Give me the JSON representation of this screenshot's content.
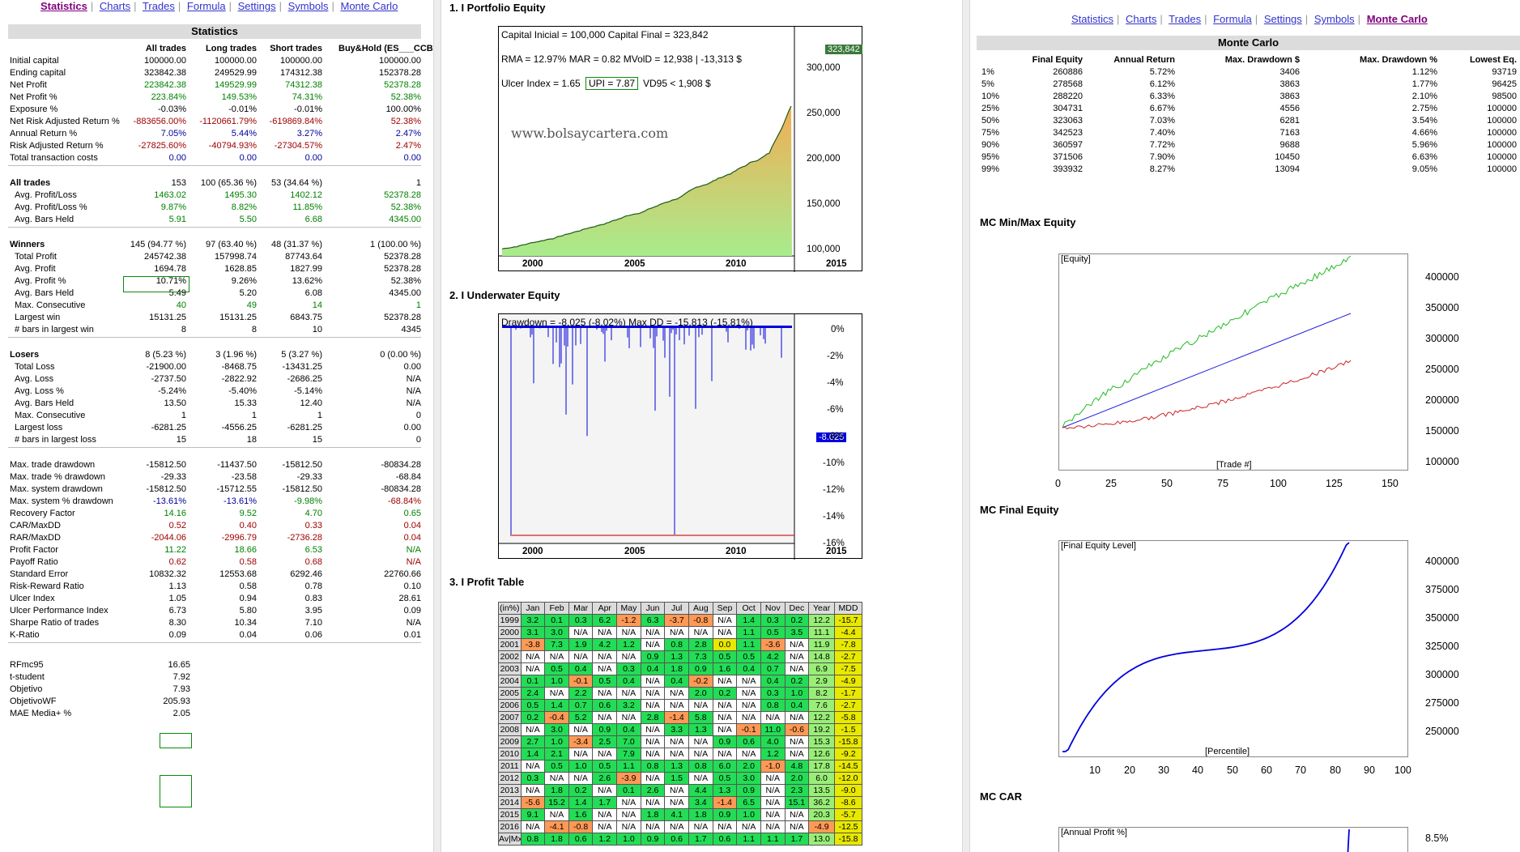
{
  "nav": {
    "items": [
      "Statistics",
      "Charts",
      "Trades",
      "Formula",
      "Settings",
      "Symbols",
      "Monte Carlo"
    ],
    "left_active": "Statistics",
    "right_active": "Monte Carlo"
  },
  "stats": {
    "title": "Statistics",
    "columns": [
      "All trades",
      "Long trades",
      "Short trades",
      "Buy&Hold (ES___CCB)"
    ],
    "groups": [
      [
        [
          "Initial capital",
          "100000.00",
          "100000.00",
          "100000.00",
          "100000.00",
          ""
        ],
        [
          "Ending capital",
          "323842.38",
          "249529.99",
          "174312.38",
          "152378.28",
          ""
        ],
        [
          "Net Profit",
          "223842.38",
          "149529.99",
          "74312.38",
          "52378.28",
          "g"
        ],
        [
          "Net Profit %",
          "223.84%",
          "149.53%",
          "74.31%",
          "52.38%",
          "g"
        ],
        [
          "Exposure %",
          "-0.03%",
          "-0.01%",
          "-0.01%",
          "100.00%",
          ""
        ],
        [
          "Net Risk Adjusted Return %",
          "-883656.00%",
          "-1120661.79%",
          "-619869.84%",
          "52.38%",
          "r"
        ],
        [
          "Annual Return %",
          "7.05%",
          "5.44%",
          "3.27%",
          "2.47%",
          "b"
        ],
        [
          "Risk Adjusted Return %",
          "-27825.60%",
          "-40794.93%",
          "-27304.57%",
          "2.47%",
          "r"
        ],
        [
          "Total transaction costs",
          "0.00",
          "0.00",
          "0.00",
          "0.00",
          "b"
        ]
      ],
      [
        [
          "All trades",
          "153",
          "100 (65.36 %)",
          "53 (34.64 %)",
          "1",
          "B"
        ],
        [
          "  Avg. Profit/Loss",
          "1463.02",
          "1495.30",
          "1402.12",
          "52378.28",
          "g"
        ],
        [
          "  Avg. Profit/Loss %",
          "9.87%",
          "8.82%",
          "11.85%",
          "52.38%",
          "g"
        ],
        [
          "  Avg. Bars Held",
          "5.91",
          "5.50",
          "6.68",
          "4345.00",
          "g"
        ]
      ],
      [
        [
          "Winners",
          "145 (94.77 %)",
          "97 (63.40 %)",
          "48 (31.37 %)",
          "1 (100.00 %)",
          "B"
        ],
        [
          "  Total Profit",
          "245742.38",
          "157998.74",
          "87743.64",
          "52378.28",
          ""
        ],
        [
          "  Avg. Profit",
          "1694.78",
          "1628.85",
          "1827.99",
          "52378.28",
          ""
        ],
        [
          "  Avg. Profit %",
          "10.71%",
          "9.26%",
          "13.62%",
          "52.38%",
          ""
        ],
        [
          "  Avg. Bars Held",
          "5.49",
          "5.20",
          "6.08",
          "4345.00",
          ""
        ],
        [
          "  Max. Consecutive",
          "40",
          "49",
          "14",
          "1",
          "g"
        ],
        [
          "  Largest win",
          "15131.25",
          "15131.25",
          "6843.75",
          "52378.28",
          ""
        ],
        [
          "  # bars in largest win",
          "8",
          "8",
          "10",
          "4345",
          ""
        ]
      ],
      [
        [
          "Losers",
          "8 (5.23 %)",
          "3 (1.96 %)",
          "5 (3.27 %)",
          "0 (0.00 %)",
          "B"
        ],
        [
          "  Total Loss",
          "-21900.00",
          "-8468.75",
          "-13431.25",
          "0.00",
          ""
        ],
        [
          "  Avg. Loss",
          "-2737.50",
          "-2822.92",
          "-2686.25",
          "N/A",
          ""
        ],
        [
          "  Avg. Loss %",
          "-5.24%",
          "-5.40%",
          "-5.14%",
          "N/A",
          ""
        ],
        [
          "  Avg. Bars Held",
          "13.50",
          "15.33",
          "12.40",
          "N/A",
          ""
        ],
        [
          "  Max. Consecutive",
          "1",
          "1",
          "1",
          "0",
          ""
        ],
        [
          "  Largest loss",
          "-6281.25",
          "-4556.25",
          "-6281.25",
          "0.00",
          ""
        ],
        [
          "  # bars in largest loss",
          "15",
          "18",
          "15",
          "0",
          ""
        ]
      ],
      [
        [
          "Max. trade drawdown",
          "-15812.50",
          "-11437.50",
          "-15812.50",
          "-80834.28",
          ""
        ],
        [
          "Max. trade % drawdown",
          "-29.33",
          "-23.58",
          "-29.33",
          "-68.84",
          ""
        ],
        [
          "Max. system drawdown",
          "-15812.50",
          "-15712.55",
          "-15812.50",
          "-80834.28",
          ""
        ],
        [
          "Max. system % drawdown",
          "-13.61%",
          "-13.61%",
          "-9.98%",
          "-68.84%",
          "bbr"
        ],
        [
          "Recovery Factor",
          "14.16",
          "9.52",
          "4.70",
          "0.65",
          "g"
        ],
        [
          "CAR/MaxDD",
          "0.52",
          "0.40",
          "0.33",
          "0.04",
          "r"
        ],
        [
          "RAR/MaxDD",
          "-2044.06",
          "-2996.79",
          "-2736.28",
          "0.04",
          "r"
        ],
        [
          "Profit Factor",
          "11.22",
          "18.66",
          "6.53",
          "N/A",
          "g"
        ],
        [
          "Payoff Ratio",
          "0.62",
          "0.58",
          "0.68",
          "N/A",
          "r"
        ],
        [
          "Standard Error",
          "10832.32",
          "12553.68",
          "6292.46",
          "22760.66",
          ""
        ],
        [
          "Risk-Reward Ratio",
          "1.13",
          "0.58",
          "0.78",
          "0.10",
          ""
        ],
        [
          "Ulcer Index",
          "1.05",
          "0.94",
          "0.83",
          "28.61",
          ""
        ],
        [
          "Ulcer Performance Index",
          "6.73",
          "5.80",
          "3.95",
          "0.09",
          ""
        ],
        [
          "Sharpe Ratio of trades",
          "8.30",
          "10.34",
          "7.10",
          "N/A",
          ""
        ],
        [
          "K-Ratio",
          "0.09",
          "0.04",
          "0.06",
          "0.01",
          ""
        ]
      ]
    ],
    "extra": [
      [
        "RFmc95",
        "16.65"
      ],
      [
        "t-student",
        "7.92"
      ],
      [
        "Objetivo",
        "7.93"
      ],
      [
        "ObjetivoWF",
        "205.93"
      ],
      [
        "MAE Media+ %",
        "2.05"
      ]
    ]
  },
  "portfolio": {
    "title": "1. I Portfolio Equity",
    "info": {
      "line1": "Capital Inicial = 100,000  Capital Final = 323,842",
      "line2": "RMA = 12.97%   MAR = 0.82   MVolD = 12,938 | -13,313 $",
      "line3a": "Ulcer Index = 1.65",
      "line3b": "UPI = 7.87",
      "line3c": "VD95 < 1,908 $"
    },
    "watermark": "www.bolsaycartera.com",
    "last_label": "323,842",
    "y_ticks": [
      "300,000",
      "250,000",
      "200,000",
      "150,000",
      "100,000"
    ],
    "x_ticks": [
      "2000",
      "2005",
      "2010",
      "2015"
    ]
  },
  "underwater": {
    "title": "2. I Underwater Equity",
    "info": "Drawdown = -8,025 (-8.02%)     Max DD = -15,813 (-15.81%)",
    "last_label": "-8.025",
    "y_ticks": [
      "0%",
      "-2%",
      "-4%",
      "-6%",
      "-8%",
      "-10%",
      "-12%",
      "-14%",
      "-16%"
    ],
    "x_ticks": [
      "2000",
      "2005",
      "2010",
      "2015"
    ]
  },
  "profit_table": {
    "title": "3. I Profit Table",
    "header": [
      "(in%)",
      "Jan",
      "Feb",
      "Mar",
      "Apr",
      "May",
      "Jun",
      "Jul",
      "Aug",
      "Sep",
      "Oct",
      "Nov",
      "Dec",
      "Year",
      "MDD"
    ],
    "rows": [
      [
        "1999",
        "3.2",
        "0.1",
        "0.3",
        "6.2",
        "-1.2",
        "6.3",
        "-3.7",
        "-0.8",
        "N/A",
        "1.4",
        "0.3",
        "0.2",
        "12.2",
        "-15.7"
      ],
      [
        "2000",
        "3.1",
        "3.0",
        "N/A",
        "N/A",
        "N/A",
        "N/A",
        "N/A",
        "N/A",
        "N/A",
        "1.1",
        "0.5",
        "3.5",
        "11.1",
        "-4.4"
      ],
      [
        "2001",
        "-3.8",
        "7.3",
        "1.9",
        "4.2",
        "1.2",
        "N/A",
        "0.8",
        "2.8",
        "0.0",
        "1.1",
        "-3.6",
        "N/A",
        "11.9",
        "-7.8"
      ],
      [
        "2002",
        "N/A",
        "N/A",
        "N/A",
        "N/A",
        "N/A",
        "0.9",
        "1.3",
        "7.3",
        "0.5",
        "0.5",
        "4.2",
        "N/A",
        "14.8",
        "-2.7"
      ],
      [
        "2003",
        "N/A",
        "0.5",
        "0.4",
        "N/A",
        "0.3",
        "0.4",
        "1.8",
        "0.9",
        "1.6",
        "0.4",
        "0.7",
        "N/A",
        "6.9",
        "-7.5"
      ],
      [
        "2004",
        "0.1",
        "1.0",
        "-0.1",
        "0.5",
        "0.4",
        "N/A",
        "0.4",
        "-0.2",
        "N/A",
        "N/A",
        "0.4",
        "0.2",
        "2.9",
        "-4.9"
      ],
      [
        "2005",
        "2.4",
        "N/A",
        "2.2",
        "N/A",
        "N/A",
        "N/A",
        "N/A",
        "2.0",
        "0.2",
        "N/A",
        "0.3",
        "1.0",
        "8.2",
        "-1.7"
      ],
      [
        "2006",
        "0.5",
        "1.4",
        "0.7",
        "0.6",
        "3.2",
        "N/A",
        "N/A",
        "N/A",
        "N/A",
        "N/A",
        "0.8",
        "0.4",
        "7.6",
        "-2.7"
      ],
      [
        "2007",
        "0.2",
        "-0.4",
        "5.2",
        "N/A",
        "N/A",
        "2.8",
        "-1.4",
        "5.8",
        "N/A",
        "N/A",
        "N/A",
        "N/A",
        "12.2",
        "-5.8"
      ],
      [
        "2008",
        "N/A",
        "3.0",
        "N/A",
        "0.9",
        "0.4",
        "N/A",
        "3.3",
        "1.3",
        "N/A",
        "-0.1",
        "11.0",
        "-0.6",
        "19.2",
        "-1.5"
      ],
      [
        "2009",
        "2.7",
        "1.0",
        "-3.4",
        "2.5",
        "7.0",
        "N/A",
        "N/A",
        "N/A",
        "0.9",
        "0.6",
        "4.0",
        "N/A",
        "15.3",
        "-15.8"
      ],
      [
        "2010",
        "1.4",
        "2.1",
        "N/A",
        "N/A",
        "7.9",
        "N/A",
        "N/A",
        "N/A",
        "N/A",
        "N/A",
        "1.2",
        "N/A",
        "12.6",
        "-9.2"
      ],
      [
        "2011",
        "N/A",
        "0.5",
        "1.0",
        "0.5",
        "1.1",
        "0.8",
        "1.3",
        "0.8",
        "6.0",
        "2.0",
        "-1.0",
        "4.8",
        "17.8",
        "-14.5"
      ],
      [
        "2012",
        "0.3",
        "N/A",
        "N/A",
        "2.6",
        "-3.9",
        "N/A",
        "1.5",
        "N/A",
        "0.5",
        "3.0",
        "N/A",
        "2.0",
        "6.0",
        "-12.0"
      ],
      [
        "2013",
        "N/A",
        "1.8",
        "0.2",
        "N/A",
        "0.1",
        "2.6",
        "N/A",
        "4.4",
        "1.3",
        "0.9",
        "N/A",
        "2.3",
        "13.5",
        "-9.0"
      ],
      [
        "2014",
        "-5.6",
        "15.2",
        "1.4",
        "1.7",
        "N/A",
        "N/A",
        "N/A",
        "3.4",
        "-1.4",
        "6.5",
        "N/A",
        "15.1",
        "36.2",
        "-8.6"
      ],
      [
        "2015",
        "9.1",
        "N/A",
        "1.6",
        "N/A",
        "N/A",
        "1.8",
        "4.1",
        "1.8",
        "0.9",
        "1.0",
        "N/A",
        "N/A",
        "20.3",
        "-5.7"
      ],
      [
        "2016",
        "N/A",
        "-4.1",
        "-0.8",
        "N/A",
        "N/A",
        "N/A",
        "N/A",
        "N/A",
        "N/A",
        "N/A",
        "N/A",
        "N/A",
        "-4.9",
        "-12.5"
      ],
      [
        "Av|Mx",
        "0.8",
        "1.8",
        "0.6",
        "1.2",
        "1.0",
        "0.9",
        "0.6",
        "1.7",
        "0.6",
        "1.1",
        "1.1",
        "1.7",
        "13.0",
        "-15.8"
      ]
    ]
  },
  "monte_carlo": {
    "title": "Monte Carlo",
    "columns": [
      "Final Equity",
      "Annual Return",
      "Max. Drawdown $",
      "Max. Drawdown %",
      "Lowest Eq."
    ],
    "rows": [
      [
        "1%",
        "260886",
        "5.72%",
        "3406",
        "1.12%",
        "93719"
      ],
      [
        "5%",
        "278568",
        "6.12%",
        "3863",
        "1.77%",
        "96425"
      ],
      [
        "10%",
        "288220",
        "6.33%",
        "3863",
        "2.10%",
        "98500"
      ],
      [
        "25%",
        "304731",
        "6.67%",
        "4556",
        "2.75%",
        "100000"
      ],
      [
        "50%",
        "323063",
        "7.03%",
        "6281",
        "3.54%",
        "100000"
      ],
      [
        "75%",
        "342523",
        "7.40%",
        "7163",
        "4.66%",
        "100000"
      ],
      [
        "90%",
        "360597",
        "7.72%",
        "9688",
        "5.96%",
        "100000"
      ],
      [
        "95%",
        "371506",
        "7.90%",
        "10450",
        "6.63%",
        "100000"
      ],
      [
        "99%",
        "393932",
        "8.27%",
        "13094",
        "9.05%",
        "100000"
      ]
    ],
    "minmax": {
      "title": "MC Min/Max Equity",
      "ylab": "[Equity]",
      "xlab": "[Trade #]",
      "y_ticks": [
        "400000",
        "350000",
        "300000",
        "250000",
        "200000",
        "150000",
        "100000"
      ],
      "x_ticks": [
        "0",
        "25",
        "50",
        "75",
        "100",
        "125",
        "150"
      ]
    },
    "final": {
      "title": "MC Final Equity",
      "ylab": "[Final Equity Level]",
      "xlab": "[Percentile]",
      "y_ticks": [
        "400000",
        "375000",
        "350000",
        "325000",
        "300000",
        "275000",
        "250000"
      ],
      "x_ticks": [
        "10",
        "20",
        "30",
        "40",
        "50",
        "60",
        "70",
        "80",
        "90",
        "100"
      ]
    },
    "car": {
      "title": "MC CAR",
      "ylab": "[Annual Profit %]",
      "y_ticks": [
        "8.5%"
      ]
    }
  },
  "colors": {
    "cell_green": "#22dd55",
    "cell_lightgreen": "#99ee77",
    "cell_orange": "#ff9955",
    "cell_yellow": "#e8e800",
    "equity_top": "#f2ad55",
    "equity_bottom": "#a8ec8c",
    "underwater_line": "#0000dd",
    "mc_max": "#22bb22",
    "mc_mid": "#2222dd",
    "mc_min": "#cc2222"
  }
}
